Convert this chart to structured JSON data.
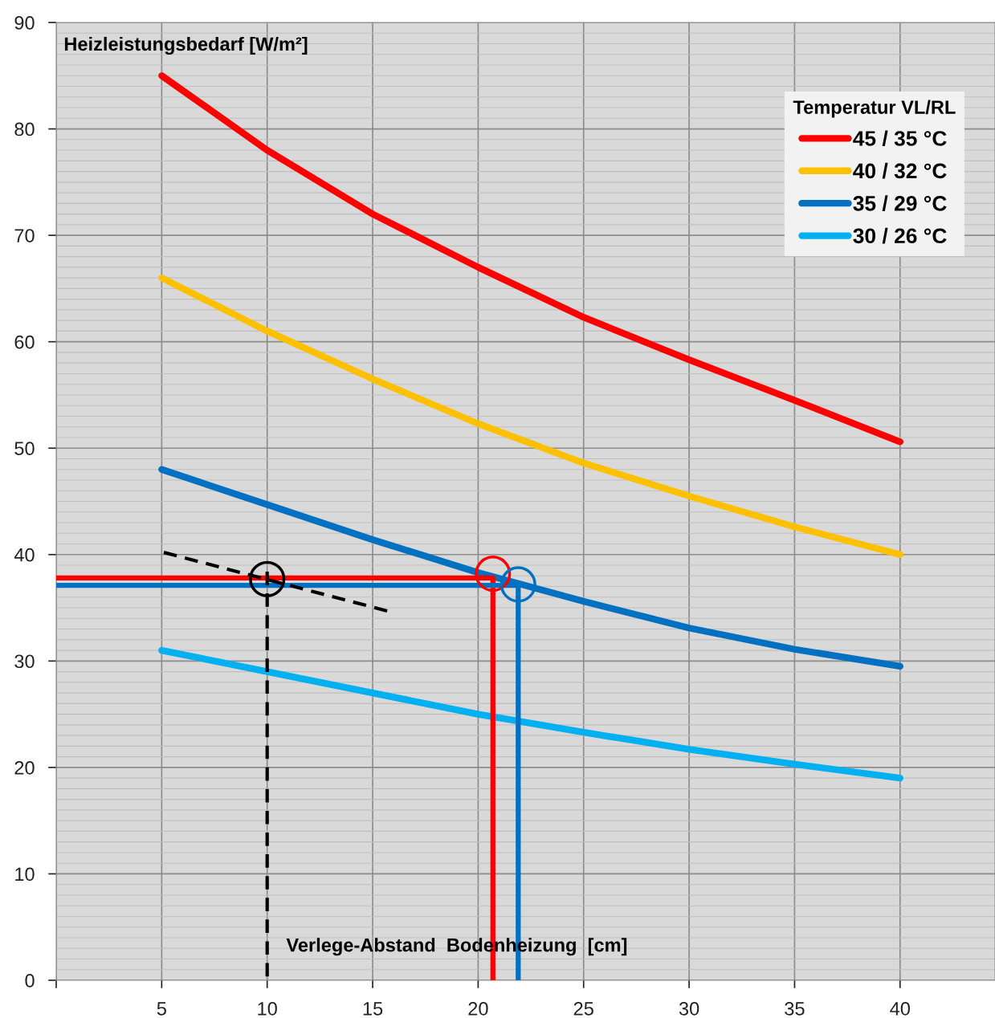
{
  "chart_data": {
    "type": "line",
    "xlabel": "Verlege-Abstand  Bodenheizung  [cm]",
    "ylabel": "Heizleistungsbedarf [W/m²]",
    "legend_title": "Temperatur VL/RL",
    "xlim": [
      0,
      44.5
    ],
    "ylim": [
      0,
      90
    ],
    "xticks": [
      {
        "value": 0,
        "label": null
      },
      5,
      10,
      15,
      20,
      25,
      30,
      35,
      40
    ],
    "yticks": [
      0,
      10,
      20,
      30,
      40,
      50,
      60,
      70,
      80,
      90
    ],
    "grid": true,
    "legend": "top right",
    "marker": "none",
    "line_style": "solid",
    "x": [
      5,
      10,
      15,
      20,
      25,
      30,
      35,
      40
    ],
    "series": [
      {
        "name": "45 / 35 °C",
        "color": "#ff0000",
        "values": [
          85,
          78,
          72,
          67,
          62.3,
          58.3,
          54.5,
          50.6
        ]
      },
      {
        "name": "40 / 32 °C",
        "color": "#ffc000",
        "values": [
          66,
          61,
          56.5,
          52.3,
          48.6,
          45.5,
          42.6,
          40
        ]
      },
      {
        "name": "35 / 29 °C",
        "color": "#0070c0",
        "values": [
          48,
          44.7,
          41.4,
          38.3,
          35.6,
          33.1,
          31.1,
          29.5
        ]
      },
      {
        "name": "30 / 26 °C",
        "color": "#00b0f0",
        "values": [
          31,
          29,
          27,
          25,
          23.3,
          21.7,
          20.3,
          19
        ]
      },
      {
        "color": "#ff0000",
        "x": [
          0,
          20.7,
          20.7
        ],
        "values": [
          37.8,
          37.8,
          0
        ]
      },
      {
        "color": "#0070c0",
        "x": [
          0,
          21.9,
          21.9
        ],
        "values": [
          37.1,
          37.1,
          0
        ]
      },
      {
        "color": "#000000",
        "line_style": "dashed",
        "x": [
          5.1,
          15.7
        ],
        "values": [
          40.2,
          34.7
        ]
      },
      {
        "color": "#000000",
        "line_style": "dashed",
        "x": [
          10,
          10
        ],
        "values": [
          38.4,
          0
        ]
      },
      {
        "type": "scatter",
        "marker": "circle",
        "color": "#000000",
        "x": [
          10
        ],
        "values": [
          37.7
        ]
      },
      {
        "type": "scatter",
        "marker": "circle",
        "color": "#ff0000",
        "x": [
          20.7
        ],
        "values": [
          38.2
        ]
      },
      {
        "type": "scatter",
        "marker": "circle",
        "color": "#0070c0",
        "x": [
          21.9
        ],
        "values": [
          37.2
        ]
      }
    ]
  }
}
